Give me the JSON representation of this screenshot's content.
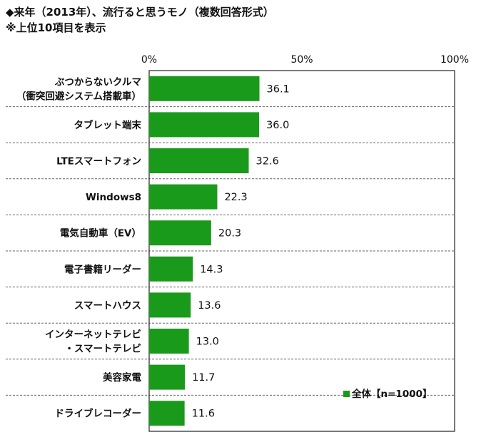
{
  "header": {
    "title": "◆来年（2013年）、流行ると思うモノ（複数回答形式）",
    "subtitle": "※上位10項目を表示"
  },
  "chart_data": {
    "type": "bar",
    "orientation": "horizontal",
    "categories": [
      [
        "ぶつからないクルマ",
        "（衝突回避システム搭載車）"
      ],
      [
        "タブレット端末"
      ],
      [
        "LTEスマートフォン"
      ],
      [
        "Windows8"
      ],
      [
        "電気自動車（EV）"
      ],
      [
        "電子書籍リーダー"
      ],
      [
        "スマートハウス"
      ],
      [
        "インターネットテレビ",
        "・スマートテレビ"
      ],
      [
        "美容家電"
      ],
      [
        "ドライブレコーダー"
      ]
    ],
    "series": [
      {
        "name": "全体【n=1000】",
        "values": [
          36.1,
          36.0,
          32.6,
          22.3,
          20.3,
          14.3,
          13.6,
          13.0,
          11.7,
          11.6
        ]
      }
    ],
    "value_labels": [
      "36.1",
      "36.0",
      "32.6",
      "22.3",
      "20.3",
      "14.3",
      "13.6",
      "13.0",
      "11.7",
      "11.6"
    ],
    "xlim": [
      0,
      100
    ],
    "xticks": [
      "0%",
      "50%",
      "100%"
    ],
    "xlabel": "",
    "ylabel": "",
    "bar_color": "#1a9a1a",
    "grid": "dashed horizontal separators",
    "legend_position": "bottom-right"
  }
}
